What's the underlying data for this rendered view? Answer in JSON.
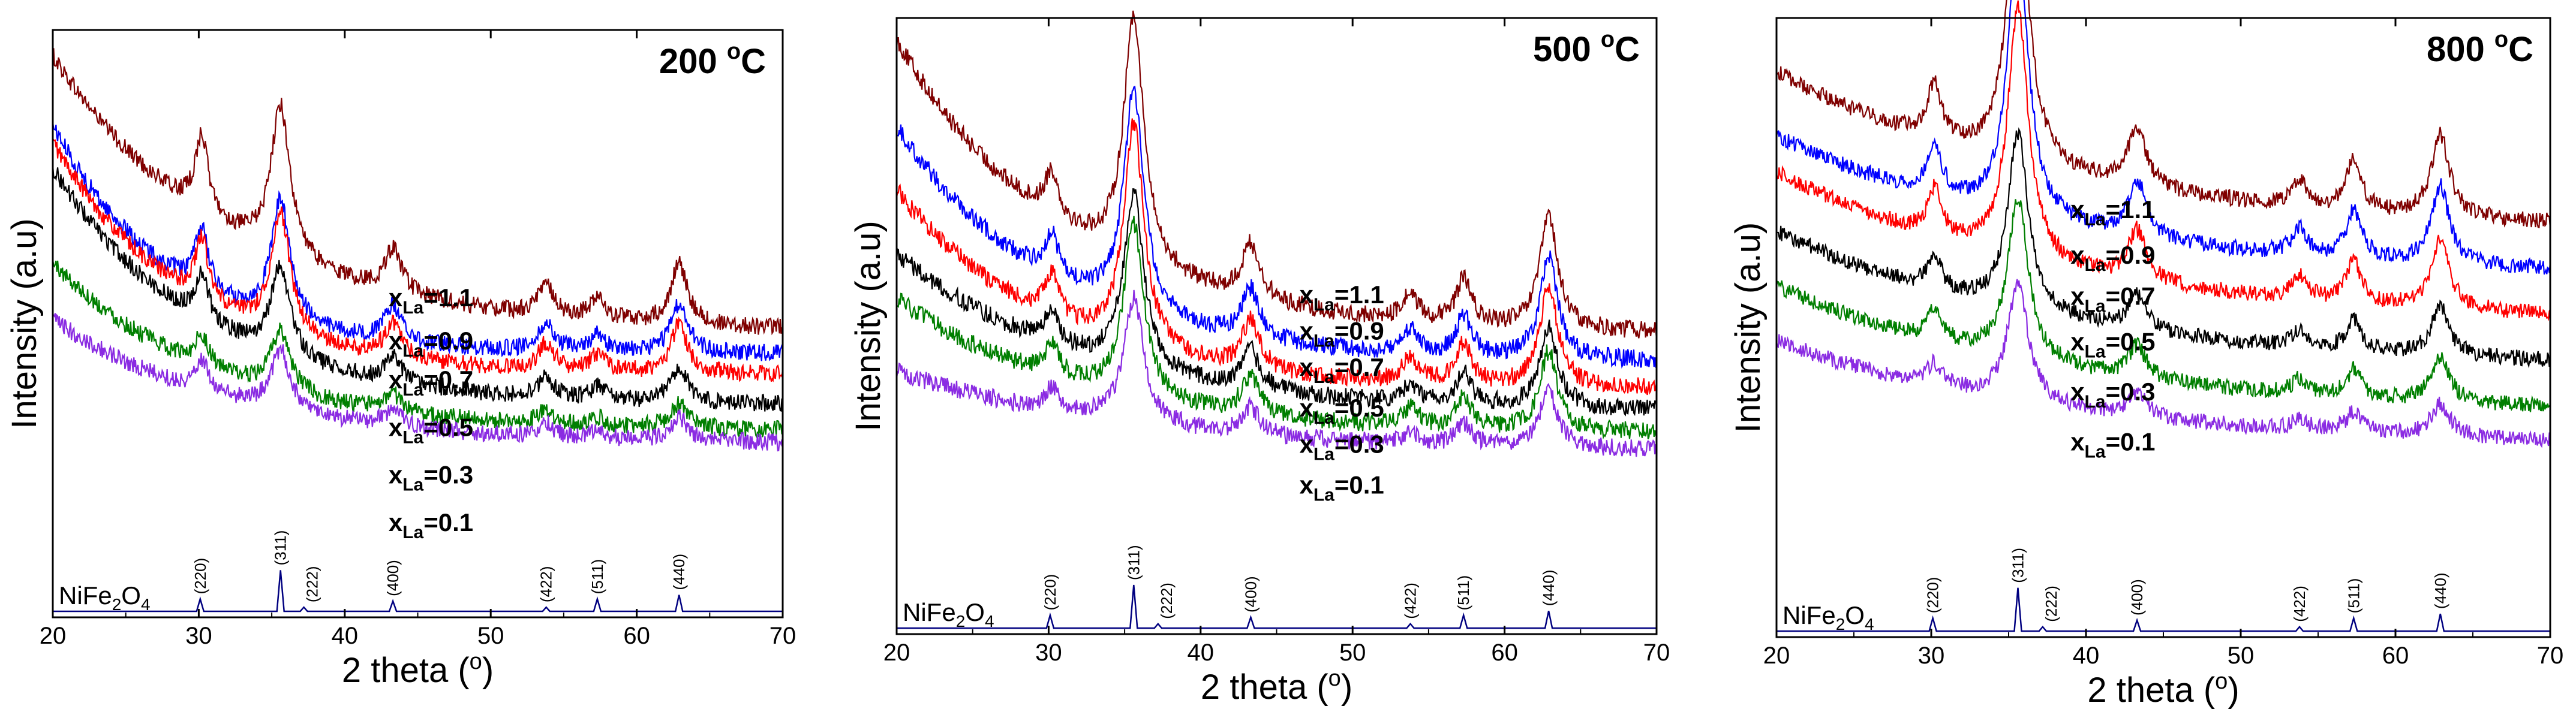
{
  "chart_data": [
    {
      "type": "line",
      "title": "200 °C",
      "xlabel": "2 theta (°)",
      "ylabel": "Intensity (a.u)",
      "xlim": [
        20,
        70
      ],
      "x_ticks": [
        20,
        30,
        40,
        50,
        60,
        70
      ],
      "peak_heights": [
        0.18,
        0.35,
        0.1,
        0.08,
        0.05,
        0.14
      ],
      "noise": 0.04,
      "series": [
        {
          "name": "x_La=1.1",
          "sub": "La",
          "value_text": "=1.1",
          "color": "#7f0000",
          "start": 0.94,
          "end": 0.3,
          "decay": 12,
          "peak_scale": 1.0
        },
        {
          "name": "x_La=0.9",
          "sub": "La",
          "value_text": "=0.9",
          "color": "#0000ff",
          "start": 0.78,
          "end": 0.25,
          "decay": 8,
          "peak_scale": 0.8
        },
        {
          "name": "x_La=0.7",
          "sub": "La",
          "value_text": "=0.7",
          "color": "#ff0000",
          "start": 0.74,
          "end": 0.2,
          "decay": 9,
          "peak_scale": 0.8
        },
        {
          "name": "x_La=0.5",
          "sub": "La",
          "value_text": "=0.5",
          "color": "#000000",
          "start": 0.68,
          "end": 0.13,
          "decay": 10,
          "peak_scale": 0.6
        },
        {
          "name": "x_La=0.3",
          "sub": "La",
          "value_text": "=0.3",
          "color": "#007f00",
          "start": 0.46,
          "end": 0.07,
          "decay": 11,
          "peak_scale": 0.4
        },
        {
          "name": "x_La=0.1",
          "sub": "La",
          "value_text": "=0.1",
          "color": "#8a2be2",
          "start": 0.33,
          "end": 0.04,
          "decay": 12,
          "peak_scale": 0.4
        }
      ],
      "series_label_positions": [
        [
          43.0,
          0.36
        ],
        [
          43.0,
          0.26
        ],
        [
          43.0,
          0.17
        ],
        [
          43.0,
          0.06
        ],
        [
          43.0,
          -0.05
        ],
        [
          43.0,
          -0.16
        ]
      ],
      "reference": {
        "label": "NiFe2O4",
        "peaks": [
          {
            "two_theta": 30.1,
            "label": "(220)",
            "intensity": 0.3
          },
          {
            "two_theta": 35.6,
            "label": "(311)",
            "intensity": 1.0
          },
          {
            "two_theta": 37.2,
            "label": "(222)",
            "intensity": 0.1
          },
          {
            "two_theta": 43.3,
            "label": "(400)",
            "intensity": 0.25
          },
          {
            "two_theta": 53.8,
            "label": "(422)",
            "intensity": 0.1
          },
          {
            "two_theta": 57.3,
            "label": "(511)",
            "intensity": 0.3
          },
          {
            "two_theta": 62.9,
            "label": "(440)",
            "intensity": 0.4
          }
        ]
      }
    },
    {
      "type": "line",
      "title": "500 °C",
      "xlabel": "2 theta (°)",
      "ylabel": "Intensity (a.u)",
      "xlim": [
        20,
        70
      ],
      "x_ticks": [
        20,
        30,
        40,
        50,
        60,
        70
      ],
      "peak_heights": [
        0.1,
        0.55,
        0.12,
        0.06,
        0.1,
        0.25
      ],
      "noise": 0.04,
      "series": [
        {
          "name": "x_La=1.1",
          "sub": "La",
          "value_text": "=1.1",
          "color": "#7f0000",
          "start": 0.95,
          "end": 0.3,
          "decay": 11,
          "peak_scale": 1.0
        },
        {
          "name": "x_La=0.9",
          "sub": "La",
          "value_text": "=0.9",
          "color": "#0000ff",
          "start": 0.76,
          "end": 0.24,
          "decay": 10,
          "peak_scale": 0.9
        },
        {
          "name": "x_La=0.7",
          "sub": "La",
          "value_text": "=0.7",
          "color": "#ff0000",
          "start": 0.62,
          "end": 0.18,
          "decay": 10,
          "peak_scale": 0.9
        },
        {
          "name": "x_La=0.5",
          "sub": "La",
          "value_text": "=0.5",
          "color": "#000000",
          "start": 0.48,
          "end": 0.13,
          "decay": 12,
          "peak_scale": 0.7
        },
        {
          "name": "x_La=0.3",
          "sub": "La",
          "value_text": "=0.3",
          "color": "#007f00",
          "start": 0.38,
          "end": 0.08,
          "decay": 12,
          "peak_scale": 0.7
        },
        {
          "name": "x_La=0.1",
          "sub": "La",
          "value_text": "=0.1",
          "color": "#8a2be2",
          "start": 0.22,
          "end": 0.04,
          "decay": 15,
          "peak_scale": 0.5
        }
      ],
      "series_label_positions": [
        [
          46.5,
          0.37
        ],
        [
          46.5,
          0.29
        ],
        [
          46.5,
          0.21
        ],
        [
          46.5,
          0.12
        ],
        [
          46.5,
          0.04
        ],
        [
          46.5,
          -0.05
        ]
      ],
      "reference": {
        "label": "NiFe2O4",
        "peaks": [
          {
            "two_theta": 30.1,
            "label": "(220)",
            "intensity": 0.3
          },
          {
            "two_theta": 35.6,
            "label": "(311)",
            "intensity": 1.0
          },
          {
            "two_theta": 37.2,
            "label": "(222)",
            "intensity": 0.1
          },
          {
            "two_theta": 43.3,
            "label": "(400)",
            "intensity": 0.25
          },
          {
            "two_theta": 53.8,
            "label": "(422)",
            "intensity": 0.1
          },
          {
            "two_theta": 57.3,
            "label": "(511)",
            "intensity": 0.3
          },
          {
            "two_theta": 62.9,
            "label": "(440)",
            "intensity": 0.4
          }
        ]
      }
    },
    {
      "type": "line",
      "title": "800 °C",
      "xlabel": "2 theta (°)",
      "ylabel": "Intensity (a.u)",
      "xlim": [
        20,
        70
      ],
      "x_ticks": [
        20,
        30,
        40,
        50,
        60,
        70
      ],
      "peak_heights": [
        0.12,
        0.65,
        0.13,
        0.06,
        0.11,
        0.18
      ],
      "noise": 0.035,
      "series": [
        {
          "name": "x_La=1.1",
          "sub": "La",
          "value_text": "=1.1",
          "color": "#7f0000",
          "start": 0.88,
          "end": 0.53,
          "decay": 18,
          "peak_scale": 1.0
        },
        {
          "name": "x_La=0.9",
          "sub": "La",
          "value_text": "=0.9",
          "color": "#0000ff",
          "start": 0.74,
          "end": 0.43,
          "decay": 18,
          "peak_scale": 0.95
        },
        {
          "name": "x_La=0.7",
          "sub": "La",
          "value_text": "=0.7",
          "color": "#ff0000",
          "start": 0.66,
          "end": 0.33,
          "decay": 18,
          "peak_scale": 0.85
        },
        {
          "name": "x_La=0.5",
          "sub": "La",
          "value_text": "=0.5",
          "color": "#000000",
          "start": 0.53,
          "end": 0.23,
          "decay": 18,
          "peak_scale": 0.6
        },
        {
          "name": "x_La=0.3",
          "sub": "La",
          "value_text": "=0.3",
          "color": "#007f00",
          "start": 0.41,
          "end": 0.13,
          "decay": 18,
          "peak_scale": 0.55
        },
        {
          "name": "x_La=0.1",
          "sub": "La",
          "value_text": "=0.1",
          "color": "#8a2be2",
          "start": 0.29,
          "end": 0.06,
          "decay": 18,
          "peak_scale": 0.4
        }
      ],
      "series_label_positions": [
        [
          39.0,
          0.56
        ],
        [
          39.0,
          0.46
        ],
        [
          39.0,
          0.37
        ],
        [
          39.0,
          0.27
        ],
        [
          39.0,
          0.16
        ],
        [
          39.0,
          0.05
        ]
      ],
      "reference": {
        "label": "NiFe2O4",
        "peaks": [
          {
            "two_theta": 30.1,
            "label": "(220)",
            "intensity": 0.3
          },
          {
            "two_theta": 35.6,
            "label": "(311)",
            "intensity": 1.0
          },
          {
            "two_theta": 37.2,
            "label": "(222)",
            "intensity": 0.1
          },
          {
            "two_theta": 43.3,
            "label": "(400)",
            "intensity": 0.25
          },
          {
            "two_theta": 53.8,
            "label": "(422)",
            "intensity": 0.1
          },
          {
            "two_theta": 57.3,
            "label": "(511)",
            "intensity": 0.3
          },
          {
            "two_theta": 62.9,
            "label": "(440)",
            "intensity": 0.4
          }
        ]
      }
    }
  ],
  "colors": {
    "reference_line": "#000080",
    "axis": "#000000"
  }
}
